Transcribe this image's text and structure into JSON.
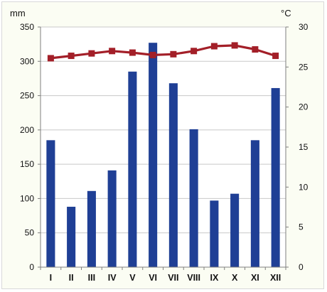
{
  "chart_data": {
    "type": "bar+line",
    "categories": [
      "I",
      "II",
      "III",
      "IV",
      "V",
      "VI",
      "VII",
      "VIII",
      "IX",
      "X",
      "XI",
      "XII"
    ],
    "series": [
      {
        "values": [
          185,
          88,
          111,
          141,
          285,
          327,
          268,
          201,
          97,
          107,
          185,
          261
        ],
        "type": "bar",
        "axis": "left",
        "color": "#1f3f95"
      },
      {
        "values": [
          26.1,
          26.4,
          26.7,
          27.0,
          26.8,
          26.5,
          26.6,
          27.0,
          27.6,
          27.7,
          27.2,
          26.4
        ],
        "type": "line",
        "axis": "right",
        "color": "#a31f28",
        "marker": "square"
      }
    ],
    "y_left": {
      "unit": "mm",
      "min": 0,
      "max": 350,
      "ticks": [
        "0",
        "50",
        "100",
        "150",
        "200",
        "250",
        "300",
        "350"
      ]
    },
    "y_right": {
      "unit": "°C",
      "min": 0,
      "max": 30,
      "ticks": [
        "0",
        "5",
        "10",
        "15",
        "20",
        "25",
        "30"
      ]
    },
    "grid": "horizontal",
    "gridline_color": "#c8c8c8",
    "plot_background": "#ffffff",
    "legend": "none"
  }
}
